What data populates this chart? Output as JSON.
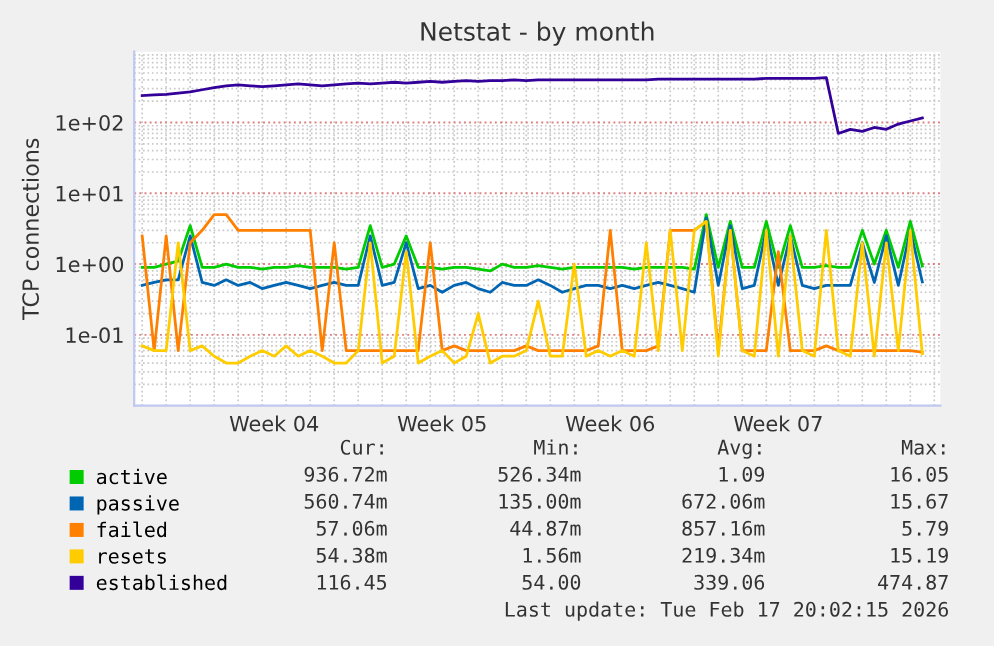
{
  "chart_data": {
    "type": "line",
    "title": "Netstat - by month",
    "ylabel": "TCP connections",
    "x": [
      "2026-01-17T00:00",
      "2026-01-17T12:00",
      "2026-01-18T00:00",
      "2026-01-18T12:00",
      "2026-01-19T00:00",
      "2026-01-19T12:00",
      "2026-01-20T00:00",
      "2026-01-20T12:00",
      "2026-01-21T00:00",
      "2026-01-21T12:00",
      "2026-01-22T00:00",
      "2026-01-22T12:00",
      "2026-01-23T00:00",
      "2026-01-23T12:00",
      "2026-01-24T00:00",
      "2026-01-24T12:00",
      "2026-01-25T00:00",
      "2026-01-25T12:00",
      "2026-01-26T00:00",
      "2026-01-26T12:00",
      "2026-01-27T00:00",
      "2026-01-27T12:00",
      "2026-01-28T00:00",
      "2026-01-28T12:00",
      "2026-01-29T00:00",
      "2026-01-29T12:00",
      "2026-01-30T00:00",
      "2026-01-30T12:00",
      "2026-01-31T00:00",
      "2026-01-31T12:00",
      "2026-02-01T00:00",
      "2026-02-01T12:00",
      "2026-02-02T00:00",
      "2026-02-02T12:00",
      "2026-02-03T00:00",
      "2026-02-03T12:00",
      "2026-02-04T00:00",
      "2026-02-04T12:00",
      "2026-02-05T00:00",
      "2026-02-05T12:00",
      "2026-02-06T00:00",
      "2026-02-06T12:00",
      "2026-02-07T00:00",
      "2026-02-07T12:00",
      "2026-02-08T00:00",
      "2026-02-08T12:00",
      "2026-02-09T00:00",
      "2026-02-09T12:00",
      "2026-02-10T00:00",
      "2026-02-10T12:00",
      "2026-02-11T00:00",
      "2026-02-11T12:00",
      "2026-02-12T00:00",
      "2026-02-12T12:00",
      "2026-02-13T00:00",
      "2026-02-13T12:00",
      "2026-02-14T00:00",
      "2026-02-14T12:00",
      "2026-02-15T00:00",
      "2026-02-15T12:00",
      "2026-02-16T00:00",
      "2026-02-16T12:00",
      "2026-02-17T00:00",
      "2026-02-17T12:00",
      "2026-02-18T00:00",
      "2026-02-18T12:00"
    ],
    "series": [
      {
        "name": "active",
        "color": "#00cc00",
        "values": [
          0.9,
          0.9,
          1.0,
          1.1,
          3.5,
          0.9,
          0.9,
          1.0,
          0.9,
          0.9,
          0.85,
          0.9,
          0.9,
          0.95,
          0.9,
          0.9,
          0.9,
          0.85,
          0.9,
          3.5,
          0.9,
          1.0,
          2.5,
          0.9,
          0.9,
          0.85,
          0.9,
          0.9,
          0.85,
          0.8,
          1.0,
          0.9,
          0.9,
          0.95,
          0.9,
          0.85,
          0.9,
          0.9,
          0.9,
          0.9,
          0.9,
          0.85,
          0.9,
          0.9,
          0.9,
          0.9,
          0.85,
          5.0,
          0.9,
          4.0,
          0.9,
          0.9,
          4.0,
          0.9,
          3.5,
          0.9,
          0.9,
          0.95,
          0.9,
          0.9,
          3.0,
          1.0,
          3.0,
          0.9,
          4.0,
          0.94
        ]
      },
      {
        "name": "passive",
        "color": "#0066b3",
        "values": [
          0.5,
          0.55,
          0.6,
          0.6,
          2.5,
          0.55,
          0.5,
          0.6,
          0.5,
          0.55,
          0.45,
          0.5,
          0.55,
          0.5,
          0.45,
          0.5,
          0.55,
          0.5,
          0.5,
          2.5,
          0.5,
          0.55,
          2.0,
          0.45,
          0.5,
          0.4,
          0.5,
          0.55,
          0.45,
          0.4,
          0.55,
          0.5,
          0.5,
          0.6,
          0.5,
          0.4,
          0.45,
          0.5,
          0.5,
          0.45,
          0.5,
          0.45,
          0.5,
          0.55,
          0.5,
          0.45,
          0.4,
          4.5,
          0.5,
          3.5,
          0.45,
          0.5,
          3.0,
          0.5,
          2.5,
          0.5,
          0.45,
          0.5,
          0.5,
          0.5,
          2.0,
          0.55,
          2.5,
          0.5,
          3.0,
          0.56
        ]
      },
      {
        "name": "failed",
        "color": "#ff8000",
        "values": [
          2.5,
          0.06,
          2.5,
          0.06,
          2.0,
          3.0,
          5.0,
          5.0,
          3.0,
          3.0,
          3.0,
          3.0,
          3.0,
          3.0,
          3.0,
          0.06,
          2.0,
          0.06,
          0.06,
          0.06,
          0.06,
          0.06,
          0.06,
          0.06,
          2.0,
          0.06,
          0.07,
          0.06,
          0.06,
          0.06,
          0.06,
          0.06,
          0.07,
          0.06,
          0.06,
          0.06,
          0.06,
          0.06,
          0.07,
          3.0,
          0.06,
          0.06,
          0.06,
          0.07,
          3.0,
          3.0,
          3.0,
          4.0,
          0.06,
          3.0,
          0.06,
          0.06,
          0.06,
          1.5,
          0.06,
          0.06,
          0.06,
          0.07,
          0.06,
          0.06,
          0.06,
          0.06,
          0.06,
          0.06,
          0.06,
          0.057
        ]
      },
      {
        "name": "resets",
        "color": "#ffcc00",
        "values": [
          0.07,
          0.06,
          0.06,
          2.0,
          0.06,
          0.07,
          0.05,
          0.04,
          0.04,
          0.05,
          0.06,
          0.05,
          0.07,
          0.05,
          0.06,
          0.05,
          0.04,
          0.04,
          0.06,
          2.0,
          0.04,
          0.05,
          1.5,
          0.04,
          0.05,
          0.06,
          0.04,
          0.05,
          0.2,
          0.04,
          0.05,
          0.05,
          0.06,
          0.3,
          0.05,
          0.05,
          1.0,
          0.05,
          0.06,
          0.05,
          0.06,
          0.05,
          2.0,
          0.06,
          3.0,
          0.06,
          3.0,
          4.0,
          0.05,
          3.0,
          0.06,
          0.05,
          3.0,
          0.05,
          2.5,
          0.06,
          0.05,
          3.0,
          0.06,
          0.05,
          2.0,
          0.05,
          2.0,
          0.06,
          3.0,
          0.054
        ]
      },
      {
        "name": "established",
        "color": "#330099",
        "values": [
          240,
          245,
          250,
          260,
          270,
          290,
          310,
          330,
          340,
          330,
          320,
          330,
          340,
          350,
          340,
          330,
          340,
          350,
          360,
          350,
          360,
          370,
          360,
          370,
          380,
          370,
          380,
          390,
          380,
          390,
          390,
          400,
          390,
          400,
          400,
          400,
          400,
          400,
          400,
          400,
          400,
          400,
          400,
          410,
          410,
          410,
          410,
          410,
          410,
          410,
          410,
          410,
          420,
          420,
          420,
          420,
          420,
          430,
          70,
          80,
          75,
          85,
          80,
          95,
          105,
          116
        ]
      }
    ],
    "log": "y",
    "ylim": [
      0.01,
      1000
    ],
    "yticks": [
      {
        "value": 0.1,
        "label": "1e-01"
      },
      {
        "value": 1,
        "label": "1e+00"
      },
      {
        "value": 10,
        "label": "1e+01"
      },
      {
        "value": 100,
        "label": "1e+02"
      }
    ],
    "xlim": [
      "2026-01-16T16:00",
      "2026-02-19T06:00"
    ],
    "xticks": [
      {
        "value": "2026-01-22T12:00",
        "label": "Week 04"
      },
      {
        "value": "2026-01-29T12:00",
        "label": "Week 05"
      },
      {
        "value": "2026-02-05T12:00",
        "label": "Week 06"
      },
      {
        "value": "2026-02-12T12:00",
        "label": "Week 07"
      }
    ],
    "grid": true,
    "legend": "bottom left",
    "marker": "none",
    "line_style": "solid",
    "annotations": [
      "Cur:",
      "Min:",
      "Avg:",
      "Max:",
      "936.72m",
      "526.34m",
      "1.09",
      "16.05",
      "560.74m",
      "135.00m",
      "672.06m",
      "15.67",
      "57.06m",
      "44.87m",
      "857.16m",
      "5.79",
      "54.38m",
      "1.56m",
      "219.34m",
      "15.19",
      "116.45",
      "54.00",
      "339.06",
      "474.87",
      "Last update: Tue Feb 17 20:02:15 2026"
    ]
  }
}
